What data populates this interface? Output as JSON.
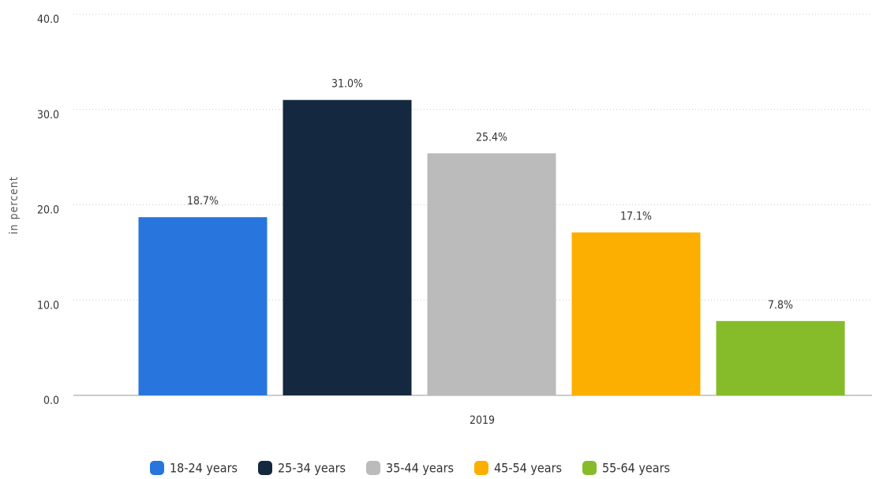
{
  "chart_data": {
    "type": "bar",
    "ylabel": "in percent",
    "categories": [
      "2019"
    ],
    "series": [
      {
        "name": "18-24 years",
        "color": "#2876dd",
        "values": [
          18.7
        ],
        "value_labels": [
          "18.7%"
        ]
      },
      {
        "name": "25-34 years",
        "color": "#14283f",
        "values": [
          31.0
        ],
        "value_labels": [
          "31.0%"
        ]
      },
      {
        "name": "35-44 years",
        "color": "#bbbbbb",
        "values": [
          25.4
        ],
        "value_labels": [
          "25.4%"
        ]
      },
      {
        "name": "45-54 years",
        "color": "#fcaf00",
        "values": [
          17.1
        ],
        "value_labels": [
          "17.1%"
        ]
      },
      {
        "name": "55-64 years",
        "color": "#86bb2a",
        "values": [
          7.8
        ],
        "value_labels": [
          "7.8%"
        ]
      }
    ],
    "ylim": [
      0,
      40
    ],
    "yticks": [
      {
        "value": 0,
        "label": "0.0"
      },
      {
        "value": 10,
        "label": "10.0"
      },
      {
        "value": 20,
        "label": "20.0"
      },
      {
        "value": 30,
        "label": "30.0"
      },
      {
        "value": 40,
        "label": "40.0"
      }
    ],
    "grid": true,
    "legend": "bottom"
  }
}
